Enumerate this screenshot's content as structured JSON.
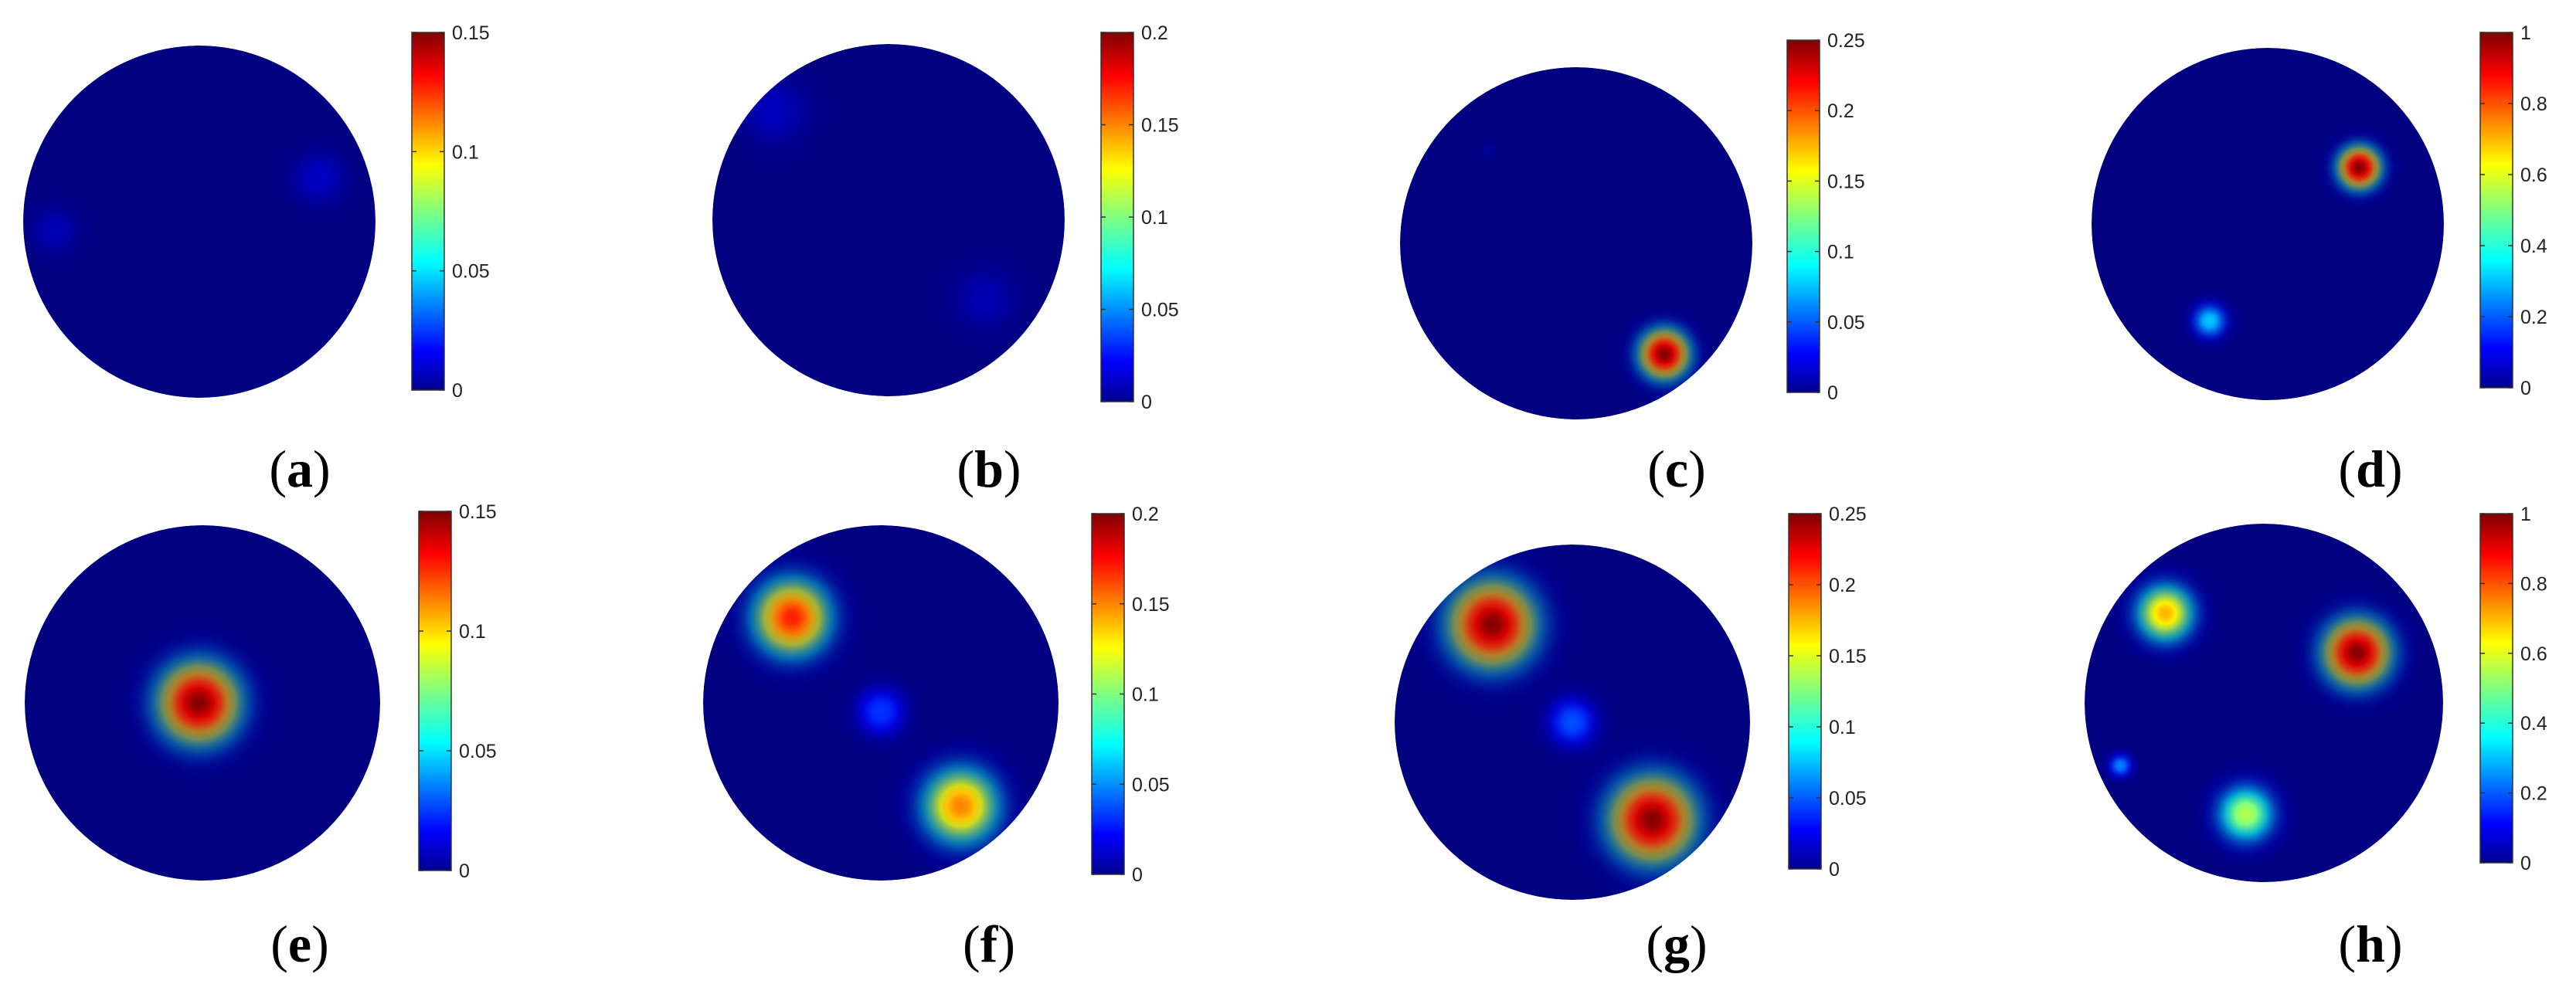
{
  "figure": {
    "panels": [
      {
        "label": "a"
      },
      {
        "label": "b"
      },
      {
        "label": "c"
      },
      {
        "label": "d"
      },
      {
        "label": "e"
      },
      {
        "label": "f"
      },
      {
        "label": "g"
      },
      {
        "label": "h"
      }
    ]
  },
  "chart_data": [
    {
      "type": "heatmap",
      "panel": "a",
      "colormap": "jet",
      "colorbar_range": [
        0,
        0.15
      ],
      "colorbar_ticks": [
        "0",
        "0.05",
        "0.1",
        "0.15"
      ],
      "grid": false,
      "blobs": [
        {
          "cx": -0.82,
          "cy": 0.05,
          "r": 0.22,
          "value": 0.008
        },
        {
          "cx": 0.68,
          "cy": -0.25,
          "r": 0.25,
          "value": 0.01
        }
      ]
    },
    {
      "type": "heatmap",
      "panel": "b",
      "colormap": "jet",
      "colorbar_range": [
        0,
        0.2
      ],
      "colorbar_ticks": [
        "0",
        "0.05",
        "0.1",
        "0.15",
        "0.2"
      ],
      "grid": false,
      "blobs": [
        {
          "cx": -0.65,
          "cy": -0.62,
          "r": 0.32,
          "value": 0.012
        },
        {
          "cx": 0.55,
          "cy": 0.45,
          "r": 0.3,
          "value": 0.01
        }
      ]
    },
    {
      "type": "heatmap",
      "panel": "c",
      "colormap": "jet",
      "colorbar_range": [
        0,
        0.25
      ],
      "colorbar_ticks": [
        "0",
        "0.05",
        "0.1",
        "0.15",
        "0.2",
        "0.25"
      ],
      "grid": false,
      "blobs": [
        {
          "cx": 0.5,
          "cy": 0.63,
          "r": 0.21,
          "value": 0.25
        },
        {
          "cx": -0.5,
          "cy": -0.53,
          "r": 0.07,
          "value": 0.008
        }
      ]
    },
    {
      "type": "heatmap",
      "panel": "d",
      "colormap": "jet",
      "colorbar_range": [
        0,
        1
      ],
      "colorbar_ticks": [
        "0",
        "0.2",
        "0.4",
        "0.6",
        "0.8",
        "1"
      ],
      "grid": false,
      "blobs": [
        {
          "cx": 0.52,
          "cy": -0.32,
          "r": 0.18,
          "value": 1.0
        },
        {
          "cx": -0.33,
          "cy": 0.55,
          "r": 0.15,
          "value": 0.32
        }
      ]
    },
    {
      "type": "heatmap",
      "panel": "e",
      "colormap": "jet",
      "colorbar_range": [
        0,
        0.15
      ],
      "colorbar_ticks": [
        "0",
        "0.05",
        "0.1",
        "0.15"
      ],
      "grid": false,
      "blobs": [
        {
          "cx": -0.02,
          "cy": 0.0,
          "r": 0.34,
          "value": 0.15
        }
      ]
    },
    {
      "type": "heatmap",
      "panel": "f",
      "colormap": "jet",
      "colorbar_range": [
        0,
        0.2
      ],
      "colorbar_ticks": [
        "0",
        "0.05",
        "0.1",
        "0.15",
        "0.2"
      ],
      "grid": false,
      "blobs": [
        {
          "cx": -0.5,
          "cy": -0.48,
          "r": 0.32,
          "value": 0.17
        },
        {
          "cx": 0.45,
          "cy": 0.58,
          "r": 0.32,
          "value": 0.15
        },
        {
          "cx": 0.0,
          "cy": 0.05,
          "r": 0.22,
          "value": 0.035
        }
      ]
    },
    {
      "type": "heatmap",
      "panel": "g",
      "colormap": "jet",
      "colorbar_range": [
        0,
        0.25
      ],
      "colorbar_ticks": [
        "0",
        "0.05",
        "0.1",
        "0.15",
        "0.2",
        "0.25"
      ],
      "grid": false,
      "blobs": [
        {
          "cx": -0.45,
          "cy": -0.55,
          "r": 0.36,
          "value": 0.25
        },
        {
          "cx": 0.45,
          "cy": 0.55,
          "r": 0.36,
          "value": 0.25
        },
        {
          "cx": 0.0,
          "cy": 0.0,
          "r": 0.22,
          "value": 0.05
        }
      ]
    },
    {
      "type": "heatmap",
      "panel": "h",
      "colormap": "jet",
      "colorbar_range": [
        0,
        1
      ],
      "colorbar_ticks": [
        "0",
        "0.2",
        "0.4",
        "0.6",
        "0.8",
        "1"
      ],
      "grid": false,
      "blobs": [
        {
          "cx": 0.52,
          "cy": -0.28,
          "r": 0.28,
          "value": 1.0
        },
        {
          "cx": -0.55,
          "cy": -0.5,
          "r": 0.24,
          "value": 0.7
        },
        {
          "cx": -0.1,
          "cy": 0.62,
          "r": 0.24,
          "value": 0.55
        },
        {
          "cx": -0.8,
          "cy": 0.35,
          "r": 0.1,
          "value": 0.25
        }
      ]
    }
  ]
}
